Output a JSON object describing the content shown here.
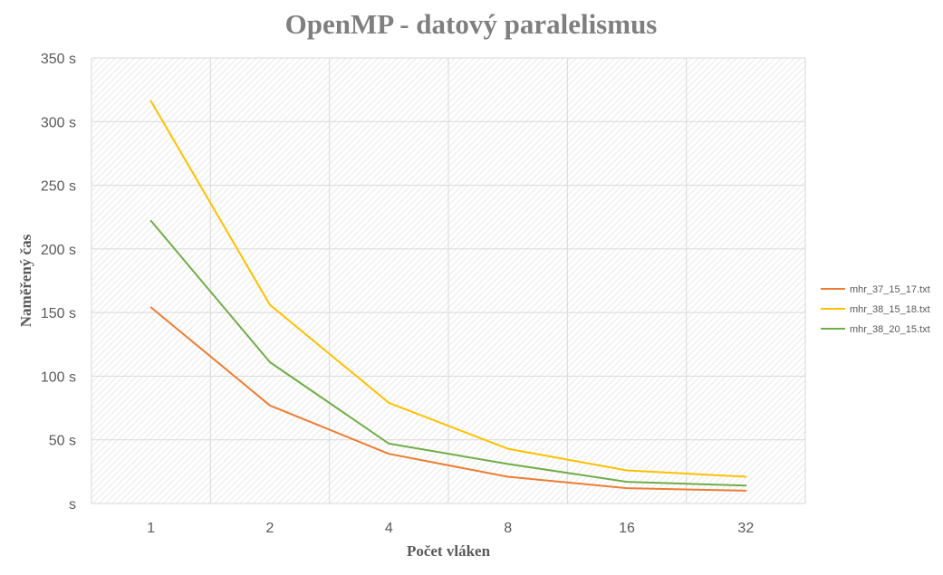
{
  "chart_data": {
    "type": "line",
    "title": "OpenMP - datový paralelismus",
    "xlabel": "Počet vláken",
    "ylabel": "Naměřený čas",
    "categories": [
      "1",
      "2",
      "4",
      "8",
      "16",
      "32"
    ],
    "y_tick_labels": [
      "s",
      "50 s",
      "100 s",
      "150 s",
      "200 s",
      "250 s",
      "300 s",
      "350 s"
    ],
    "ylim": [
      0,
      350
    ],
    "y_step": 50,
    "grid": true,
    "legend_position": "right",
    "series": [
      {
        "name": "mhr_37_15_17.txt",
        "color": "#ed7d31",
        "values": [
          154,
          77,
          39,
          21,
          12,
          10
        ]
      },
      {
        "name": "mhr_38_15_18.txt",
        "color": "#ffc000",
        "values": [
          316,
          156,
          79,
          43,
          26,
          21
        ]
      },
      {
        "name": "mhr_38_20_15.txt",
        "color": "#70ad47",
        "values": [
          222,
          111,
          47,
          31,
          17,
          14
        ]
      }
    ]
  }
}
